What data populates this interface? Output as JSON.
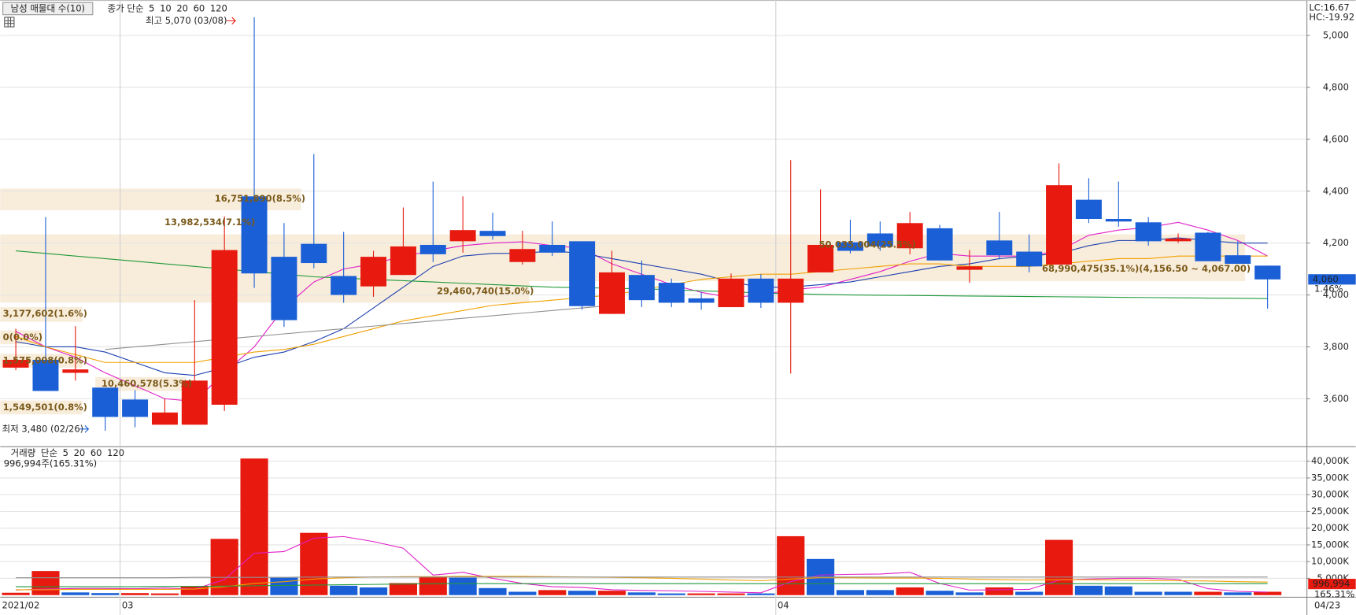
{
  "chart_data": [
    {
      "type": "candlestick",
      "indicator": "남성 매물대 수(10)",
      "ma_label": "종가 단순",
      "high_note": "최고 5,070 (03/08)",
      "low_note": "최저 3,480 (02/26)",
      "lc": "LC:16.67",
      "hc": "HC:-19.92",
      "last_price": {
        "value": 4060,
        "label": "4,060"
      },
      "change": "1.46%",
      "categories": [
        "2021/02",
        null,
        null,
        null,
        "03",
        null,
        null,
        null,
        null,
        null,
        null,
        null,
        null,
        null,
        null,
        null,
        null,
        null,
        null,
        null,
        null,
        null,
        null,
        null,
        null,
        null,
        "04",
        null,
        null,
        null,
        null,
        null,
        null,
        null,
        null,
        null,
        null,
        null,
        null,
        null,
        null,
        null,
        null
      ],
      "last_date": "04/23",
      "up_color": "#e8190e",
      "down_color": "#1a5fd6",
      "open": [
        3720,
        3750,
        3700,
        3643,
        3597,
        3500,
        3500,
        3577,
        4380,
        4147,
        4197,
        4073,
        4033,
        4077,
        4193,
        4207,
        4247,
        4127,
        4193,
        4207,
        3927,
        4077,
        4047,
        3987,
        3953,
        4063,
        3970,
        4087,
        4203,
        4237,
        4180,
        4257,
        4097,
        4210,
        4167,
        4117,
        4367,
        4293,
        4280,
        4207,
        4240,
        4153,
        4113
      ],
      "high": [
        3870,
        4300,
        3880,
        3643,
        3633,
        3600,
        3980,
        4303,
        5070,
        4277,
        4543,
        4243,
        4170,
        4337,
        4437,
        4380,
        4317,
        4247,
        4283,
        4207,
        4170,
        4133,
        4063,
        4010,
        4083,
        4080,
        4520,
        4407,
        4290,
        4283,
        4320,
        4270,
        4173,
        4320,
        4233,
        4507,
        4450,
        4437,
        4300,
        4237,
        4243,
        4207,
        4113
      ],
      "low": [
        3710,
        3630,
        3670,
        3477,
        3490,
        3500,
        3500,
        3553,
        4027,
        3877,
        4103,
        3970,
        3993,
        4077,
        4127,
        4163,
        4213,
        4117,
        4150,
        3943,
        3927,
        3953,
        3953,
        3943,
        3953,
        3950,
        3697,
        4087,
        4160,
        4170,
        4157,
        4133,
        4047,
        4137,
        4087,
        4117,
        4277,
        4263,
        4190,
        4200,
        4130,
        4120,
        3947
      ],
      "close": [
        3750,
        3630,
        3713,
        3530,
        3530,
        3547,
        3670,
        4173,
        4083,
        3903,
        4123,
        4000,
        4147,
        4187,
        4157,
        4250,
        4227,
        4177,
        4163,
        3957,
        4087,
        3980,
        3970,
        3970,
        4063,
        3970,
        4063,
        4193,
        4170,
        4187,
        4277,
        4133,
        4110,
        4153,
        4110,
        4423,
        4293,
        4283,
        4207,
        4217,
        4130,
        4120,
        4060
      ],
      "series": [
        {
          "name": "5",
          "color": "#e020c8",
          "values": [
            3860,
            3800,
            3760,
            3700,
            3650,
            3600,
            3590,
            3700,
            3800,
            3950,
            4050,
            4100,
            4120,
            4150,
            4170,
            4190,
            4200,
            4205,
            4190,
            4180,
            4120,
            4080,
            4040,
            4010,
            3990,
            4000,
            4020,
            4030,
            4060,
            4090,
            4130,
            4160,
            4150,
            4150,
            4150,
            4170,
            4230,
            4250,
            4260,
            4280,
            4250,
            4210,
            4150
          ]
        },
        {
          "name": "10",
          "color": "#1c3fb0",
          "values": [
            3820,
            3800,
            3800,
            3780,
            3740,
            3700,
            3690,
            3720,
            3760,
            3780,
            3820,
            3870,
            3950,
            4030,
            4110,
            4150,
            4160,
            4160,
            4170,
            4160,
            4140,
            4120,
            4100,
            4080,
            4050,
            4030,
            4030,
            4040,
            4050,
            4070,
            4090,
            4110,
            4120,
            4140,
            4150,
            4160,
            4190,
            4210,
            4210,
            4220,
            4210,
            4200,
            4200
          ]
        },
        {
          "name": "20",
          "color": "#f0a000",
          "values": [
            3840,
            3800,
            3770,
            3740,
            3740,
            3740,
            3740,
            3760,
            3780,
            3790,
            3810,
            3840,
            3870,
            3900,
            3920,
            3940,
            3960,
            3970,
            3980,
            3990,
            4000,
            4020,
            4040,
            4060,
            4070,
            4080,
            4080,
            4090,
            4100,
            4110,
            4120,
            4120,
            4110,
            4110,
            4110,
            4120,
            4130,
            4140,
            4140,
            4150,
            4150,
            4150,
            4150
          ]
        },
        {
          "name": "60",
          "color": "#1f9a3a",
          "values": [
            4170,
            4160,
            4150,
            4140,
            4130,
            4120,
            4110,
            4100,
            4090,
            4080,
            4070,
            4065,
            4060,
            4055,
            4050,
            4045,
            4040,
            4035,
            4030,
            4028,
            4026,
            4024,
            4020,
            4016,
            4012,
            4008,
            4005,
            4002,
            4000,
            3999,
            3998,
            3997,
            3996,
            3995,
            3994,
            3993,
            3992,
            3991,
            3990,
            3989,
            3988,
            3987,
            3986
          ]
        },
        {
          "name": "120",
          "color": "#909090",
          "values": [
            null,
            null,
            null,
            3790,
            3800,
            3810,
            3820,
            3830,
            3840,
            3850,
            3860,
            3870,
            3880,
            3890,
            3900,
            3910,
            3920,
            3930,
            3940,
            3950,
            3960,
            null,
            null,
            null,
            null,
            null,
            null,
            null,
            null,
            null,
            null,
            null,
            null,
            null,
            null,
            null,
            null,
            null,
            null,
            null,
            null,
            null,
            null
          ]
        }
      ],
      "ylim": [
        3400,
        5130
      ],
      "yticks": [
        {
          "value": 3600,
          "label": "3,600"
        },
        {
          "value": 3800,
          "label": "3,800"
        },
        {
          "value": 4000,
          "label": "4,000"
        },
        {
          "value": 4200,
          "label": "4,200"
        },
        {
          "value": 4400,
          "label": "4,400"
        },
        {
          "value": 4600,
          "label": "4,600"
        },
        {
          "value": 4800,
          "label": "4,800"
        },
        {
          "value": 5000,
          "label": "5,000"
        }
      ],
      "grid": true,
      "profile_labels": [
        "16,751,890(8.5%)",
        "13,982,534(7.1%)",
        "50,035,004(25.5%)",
        "68,990,475(35.1%)(4,156.50 ~ 4,067.00)",
        "29,460,740(15.0%)",
        "3,177,602(1.6%)",
        "0(0.0%)",
        "1,575,008(0.8%)",
        "10,460,578(5.3%)",
        "1,549,501(0.8%)"
      ]
    },
    {
      "type": "bar",
      "title": "거래량",
      "ma_label": "단순",
      "summary": "996,994주(165.31%)",
      "last_value": {
        "value": 996.994,
        "label": "996,994"
      },
      "last_ratio": "165.31%",
      "values": [
        700,
        7200,
        800,
        600,
        600,
        500,
        2600,
        16800,
        40800,
        5200,
        18600,
        2800,
        2300,
        3600,
        5400,
        5200,
        2100,
        1000,
        1500,
        1300,
        1300,
        800,
        500,
        500,
        500,
        500,
        17600,
        10800,
        1500,
        1500,
        2300,
        1300,
        800,
        2300,
        1000,
        16500,
        2800,
        2600,
        1000,
        1000,
        1000,
        800,
        996.994
      ],
      "colors": [
        "#e8190e",
        "#e8190e",
        "#1a5fd6",
        "#1a5fd6",
        "#e8190e",
        "#e8190e",
        "#e8190e",
        "#e8190e",
        "#e8190e",
        "#1a5fd6",
        "#e8190e",
        "#1a5fd6",
        "#1a5fd6",
        "#e8190e",
        "#e8190e",
        "#1a5fd6",
        "#1a5fd6",
        "#1a5fd6",
        "#e8190e",
        "#1a5fd6",
        "#e8190e",
        "#1a5fd6",
        "#1a5fd6",
        "#e8190e",
        "#e8190e",
        "#1a5fd6",
        "#e8190e",
        "#1a5fd6",
        "#1a5fd6",
        "#1a5fd6",
        "#e8190e",
        "#1a5fd6",
        "#1a5fd6",
        "#e8190e",
        "#1a5fd6",
        "#e8190e",
        "#1a5fd6",
        "#1a5fd6",
        "#1a5fd6",
        "#1a5fd6",
        "#e8190e",
        "#1a5fd6",
        "#e8190e"
      ],
      "series": [
        {
          "name": "5",
          "color": "#e020c8",
          "values": [
            1500,
            1800,
            2000,
            2000,
            1900,
            2100,
            1800,
            4600,
            12500,
            13000,
            17000,
            17500,
            16000,
            14000,
            6000,
            6800,
            5000,
            3500,
            2500,
            2300,
            1600,
            1400,
            1300,
            1100,
            900,
            700,
            4000,
            6000,
            6200,
            6300,
            6800,
            3500,
            1500,
            1600,
            1700,
            4500,
            4800,
            5000,
            5000,
            4700,
            1900,
            1100,
            900
          ]
        },
        {
          "name": "20",
          "color": "#f0a000",
          "values": [
            1600,
            1600,
            1700,
            1700,
            1700,
            1700,
            1800,
            2500,
            3500,
            4000,
            4800,
            5200,
            5400,
            5500,
            5500,
            5600,
            5600,
            5600,
            5500,
            5400,
            5300,
            5200,
            5000,
            4800,
            4500,
            4300,
            4800,
            5200,
            5200,
            5100,
            5100,
            5000,
            4800,
            4600,
            4500,
            4600,
            4600,
            4500,
            4400,
            4300,
            4200,
            4000,
            3900
          ]
        },
        {
          "name": "60",
          "color": "#1f9a3a",
          "values": [
            2500,
            2500,
            2500,
            2500,
            2500,
            2600,
            2600,
            2700,
            2800,
            2900,
            3000,
            3100,
            3200,
            3300,
            3400,
            3400,
            3400,
            3400,
            3400,
            3400,
            3400,
            3400,
            3400,
            3400,
            3400,
            3400,
            3400,
            3400,
            3400,
            3400,
            3400,
            3400,
            3400,
            3400,
            3400,
            3400,
            3400,
            3400,
            3400,
            3400,
            3400,
            3400,
            3400
          ]
        },
        {
          "name": "120",
          "color": "#909090",
          "values": [
            5200,
            5200,
            5200,
            5200,
            5200,
            5200,
            5300,
            5300,
            5300,
            5300,
            5400,
            5400,
            5400,
            5400,
            5400,
            5400,
            5400,
            5400,
            5400,
            5400,
            5400,
            5400,
            5400,
            5400,
            5400,
            5400,
            5400,
            5400,
            5400,
            5400,
            5400,
            5400,
            5400,
            5400,
            5400,
            5400,
            5400,
            5400,
            5400,
            5400,
            5400,
            5400,
            5400
          ]
        }
      ],
      "ylim": [
        0,
        42000
      ],
      "yticks": [
        {
          "value": 5000,
          "label": "5,000K"
        },
        {
          "value": 10000,
          "label": "10,000K"
        },
        {
          "value": 15000,
          "label": "15,000K"
        },
        {
          "value": 20000,
          "label": "20,000K"
        },
        {
          "value": 25000,
          "label": "25,000K"
        },
        {
          "value": 30000,
          "label": "30,000K"
        },
        {
          "value": 35000,
          "label": "35,000K"
        },
        {
          "value": 40000,
          "label": "40,000K"
        }
      ],
      "grid": true
    }
  ]
}
